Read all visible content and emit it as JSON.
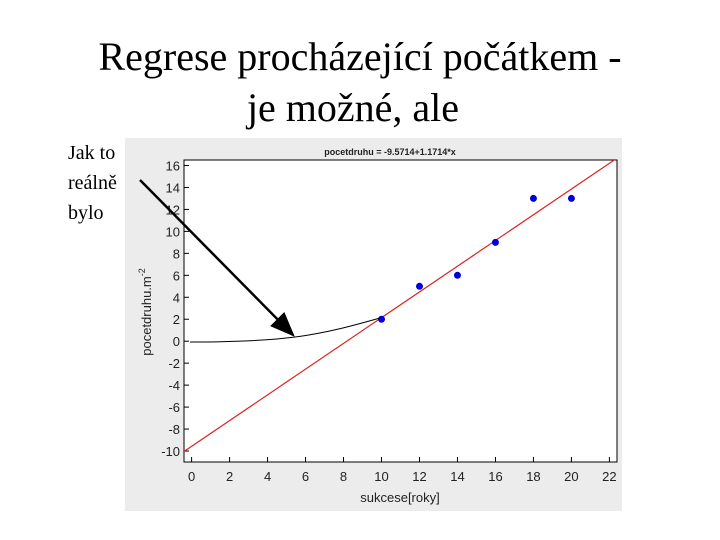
{
  "slide": {
    "title_lines": [
      "Regrese procházející počátkem -",
      "je možné, ale"
    ],
    "text_lines": [
      "Jak to",
      "reálně",
      "bylo"
    ]
  },
  "chart_data": {
    "type": "scatter",
    "title": "pocetdruhu  = -9.5714+1.1714*x",
    "x_label": "sukcese[roky]",
    "y_label": "pocetdruhu.m",
    "y_label_superscript": "-2",
    "x": [
      10,
      12,
      14,
      16,
      18,
      20
    ],
    "values": [
      2,
      5,
      6,
      9,
      13,
      13
    ],
    "color": "#0000dd",
    "fit": {
      "intercept": -9.5714,
      "slope": 1.1714,
      "color": "#dd2222"
    },
    "xlim": [
      -0.4,
      22.4
    ],
    "xticks": [
      0,
      2,
      4,
      6,
      8,
      10,
      12,
      14,
      16,
      18,
      20,
      22
    ],
    "ylim": [
      -11,
      16.5
    ],
    "yticks": [
      -10,
      -8,
      -6,
      -4,
      -2,
      0,
      2,
      4,
      6,
      8,
      10,
      12,
      14,
      16
    ],
    "grid": false
  }
}
